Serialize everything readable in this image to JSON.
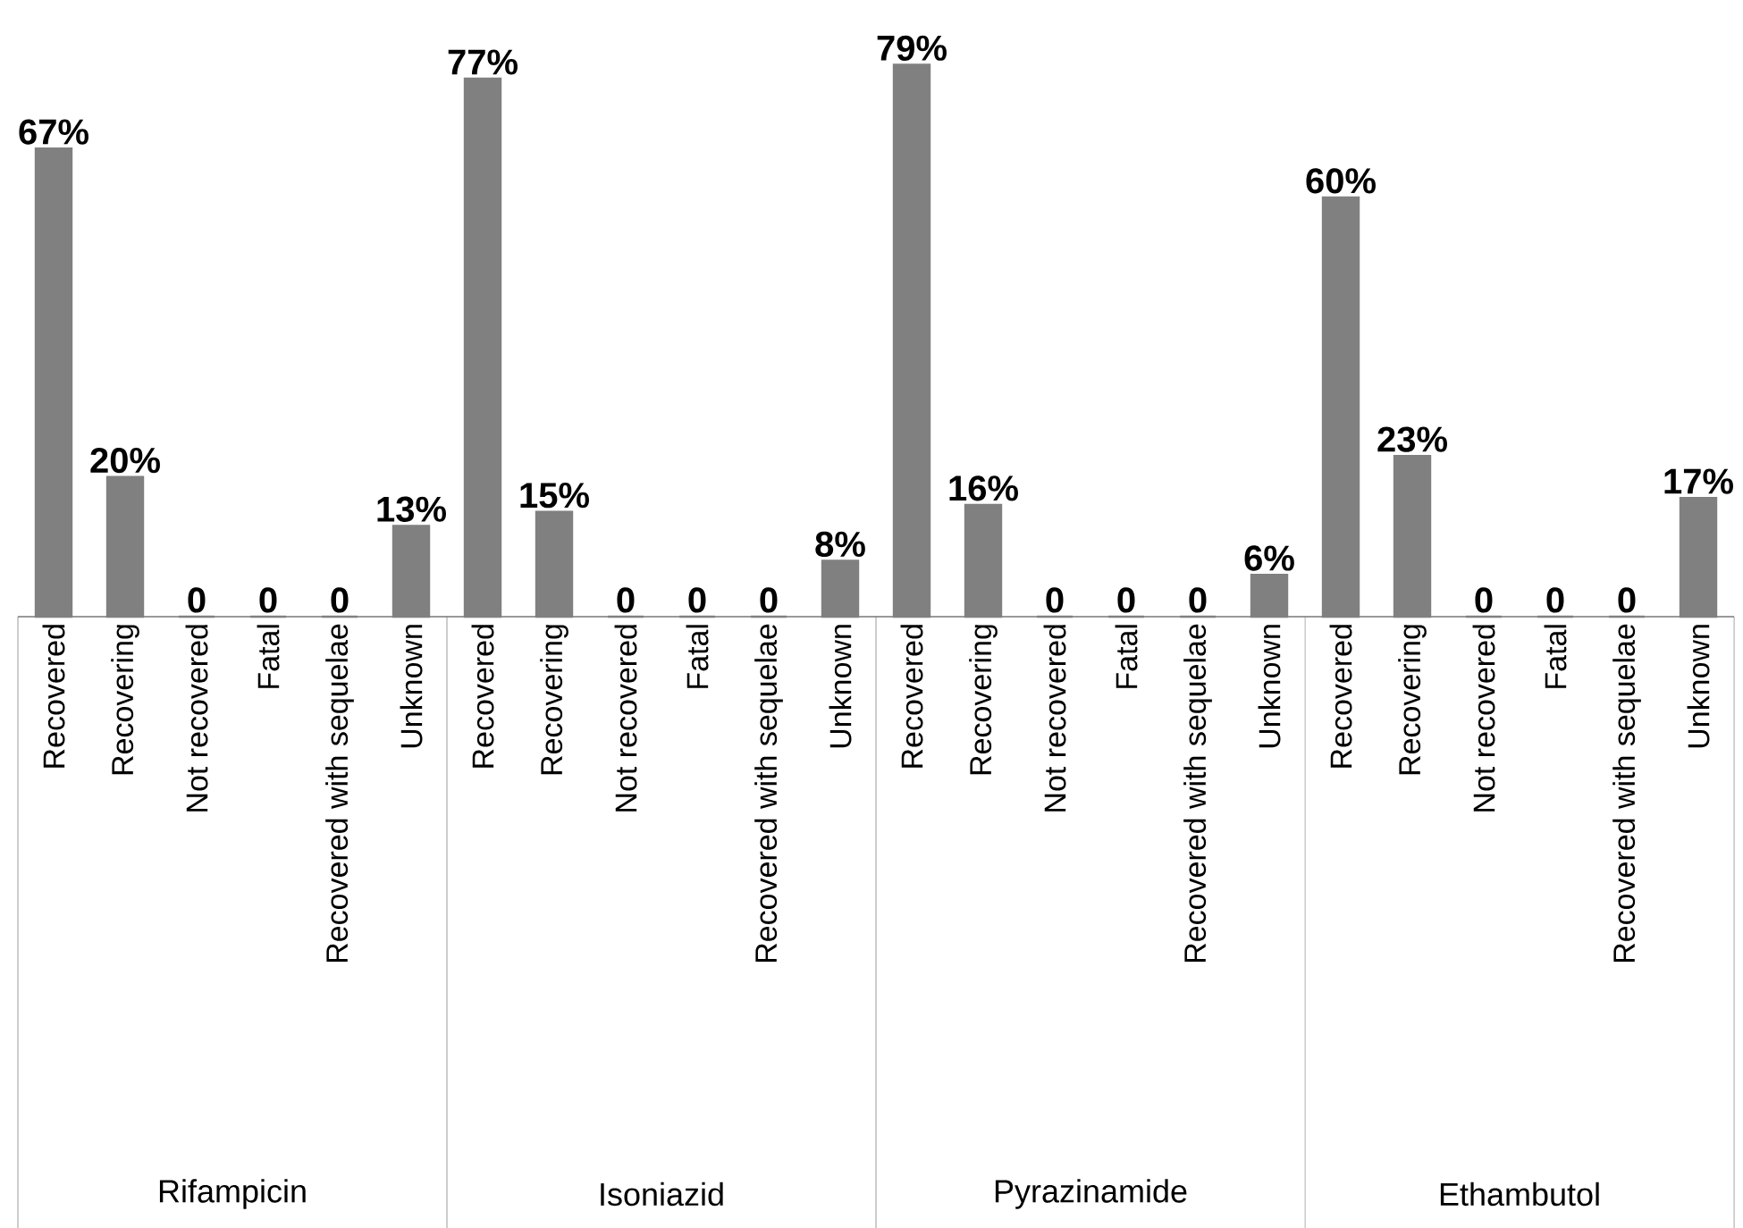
{
  "chart_data": {
    "type": "bar",
    "categories": [
      "Recovered",
      "Recovering",
      "Not recovered",
      "Fatal",
      "Recovered with sequelae",
      "Unknown",
      "Recovered",
      "Recovering",
      "Not recovered",
      "Fatal",
      "Recovered with sequelae",
      "Unknown",
      "Recovered",
      "Recovering",
      "Not recovered",
      "Fatal",
      "Recovered with sequelae",
      "Unknown",
      "Recovered",
      "Recovering",
      "Not recovered",
      "Fatal",
      "Recovered with sequelae",
      "Unknown"
    ],
    "values": [
      67,
      20,
      0,
      0,
      0,
      13,
      77,
      15,
      0,
      0,
      0,
      8,
      79,
      16,
      0,
      0,
      0,
      6,
      60,
      23,
      0,
      0,
      0,
      17
    ],
    "value_labels": [
      "67%",
      "20%",
      "0",
      "0",
      "0",
      "13%",
      "77%",
      "15%",
      "0",
      "0",
      "0",
      "8%",
      "79%",
      "16%",
      "0",
      "0",
      "0",
      "6%",
      "60%",
      "23%",
      "0",
      "0",
      "0",
      "17%"
    ],
    "color": "#808080",
    "annotations": [
      "Rifampicin",
      "Isoniazid",
      "Pyrazinamide",
      "Ethambutol"
    ]
  }
}
